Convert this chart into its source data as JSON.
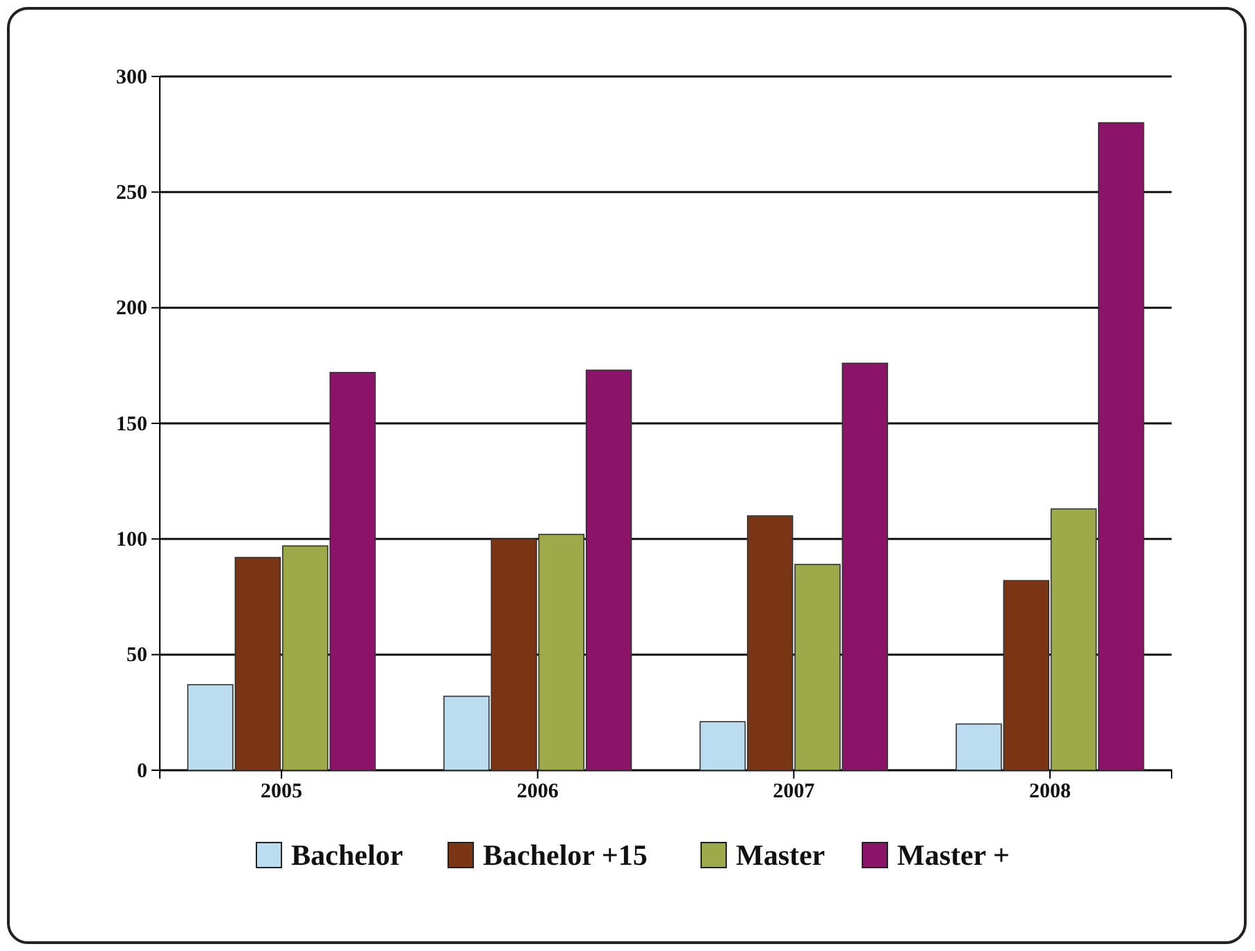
{
  "chart_data": {
    "type": "bar",
    "categories": [
      "2005",
      "2006",
      "2007",
      "2008"
    ],
    "series": [
      {
        "name": "Bachelor",
        "color": "#bcdcf0",
        "values": [
          37,
          32,
          21,
          20
        ]
      },
      {
        "name": "Bachelor +15",
        "color": "#7a3515",
        "values": [
          92,
          100,
          110,
          82
        ]
      },
      {
        "name": "Master",
        "color": "#9eaa4a",
        "values": [
          97,
          102,
          89,
          113
        ]
      },
      {
        "name": "Master +",
        "color": "#8c1468",
        "values": [
          172,
          173,
          176,
          280
        ]
      }
    ],
    "ylim": [
      0,
      300
    ],
    "yticks": [
      0,
      50,
      100,
      150,
      200,
      250,
      300
    ],
    "grid": "y",
    "legend": "bottom"
  }
}
